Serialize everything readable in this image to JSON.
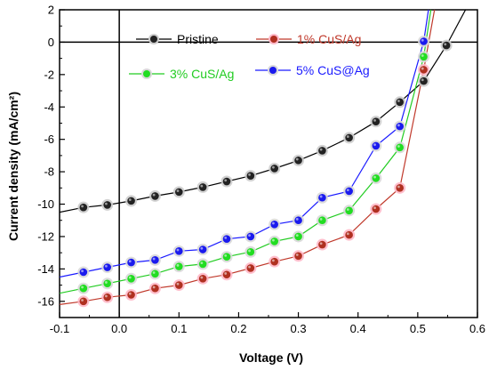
{
  "chart_data": {
    "type": "line",
    "xlabel": "Voltage (V)",
    "ylabel": "Current density (mA/cm²)",
    "xlim": [
      -0.1,
      0.6
    ],
    "ylim": [
      -17,
      2
    ],
    "x_ticks": [
      "-0.1",
      "0.0",
      "0.1",
      "0.2",
      "0.3",
      "0.4",
      "0.5",
      "0.6"
    ],
    "y_ticks": [
      "2",
      "0",
      "-2",
      "-4",
      "-6",
      "-8",
      "-10",
      "-12",
      "-14",
      "-16"
    ],
    "x_tick_values": [
      -0.1,
      0.0,
      0.1,
      0.2,
      0.3,
      0.4,
      0.5,
      0.6
    ],
    "y_tick_values": [
      2,
      0,
      -2,
      -4,
      -6,
      -8,
      -10,
      -12,
      -14,
      -16
    ],
    "zero_lines": true,
    "series": [
      {
        "name": "Pristine",
        "color": "#000000",
        "marker_fill": "#222222",
        "marker_halo": "#cccccc",
        "points": [
          [
            -0.06,
            -10.2
          ],
          [
            -0.02,
            -10.05
          ],
          [
            0.02,
            -9.8
          ],
          [
            0.06,
            -9.5
          ],
          [
            0.1,
            -9.25
          ],
          [
            0.14,
            -8.95
          ],
          [
            0.18,
            -8.6
          ],
          [
            0.22,
            -8.25
          ],
          [
            0.26,
            -7.8
          ],
          [
            0.3,
            -7.3
          ],
          [
            0.34,
            -6.7
          ],
          [
            0.385,
            -5.9
          ],
          [
            0.43,
            -4.9
          ],
          [
            0.47,
            -3.7
          ],
          [
            0.51,
            -2.4
          ],
          [
            0.548,
            -0.2
          ]
        ],
        "line": [
          [
            -0.1,
            -10.5
          ],
          [
            -0.06,
            -10.2
          ],
          [
            -0.02,
            -10.05
          ],
          [
            0.02,
            -9.8
          ],
          [
            0.06,
            -9.5
          ],
          [
            0.1,
            -9.25
          ],
          [
            0.14,
            -8.95
          ],
          [
            0.18,
            -8.6
          ],
          [
            0.22,
            -8.25
          ],
          [
            0.26,
            -7.8
          ],
          [
            0.3,
            -7.3
          ],
          [
            0.34,
            -6.7
          ],
          [
            0.385,
            -5.9
          ],
          [
            0.43,
            -4.9
          ],
          [
            0.47,
            -3.7
          ],
          [
            0.51,
            -2.4
          ],
          [
            0.548,
            -0.2
          ],
          [
            0.58,
            2
          ]
        ]
      },
      {
        "name": "1% CuS/Ag",
        "color": "#c0392b",
        "marker_fill": "#b03020",
        "marker_halo": "#ffb8c8",
        "points": [
          [
            -0.06,
            -16.0
          ],
          [
            -0.02,
            -15.75
          ],
          [
            0.02,
            -15.6
          ],
          [
            0.06,
            -15.2
          ],
          [
            0.1,
            -15.0
          ],
          [
            0.14,
            -14.6
          ],
          [
            0.18,
            -14.35
          ],
          [
            0.22,
            -13.95
          ],
          [
            0.26,
            -13.55
          ],
          [
            0.3,
            -13.2
          ],
          [
            0.34,
            -12.5
          ],
          [
            0.385,
            -11.9
          ],
          [
            0.43,
            -10.3
          ],
          [
            0.47,
            -9.0
          ],
          [
            0.51,
            -1.7
          ]
        ],
        "line": [
          [
            -0.1,
            -16.2
          ],
          [
            -0.06,
            -16.0
          ],
          [
            -0.02,
            -15.75
          ],
          [
            0.02,
            -15.6
          ],
          [
            0.06,
            -15.2
          ],
          [
            0.1,
            -15.0
          ],
          [
            0.14,
            -14.6
          ],
          [
            0.18,
            -14.35
          ],
          [
            0.22,
            -13.95
          ],
          [
            0.26,
            -13.55
          ],
          [
            0.3,
            -13.2
          ],
          [
            0.34,
            -12.5
          ],
          [
            0.385,
            -11.9
          ],
          [
            0.43,
            -10.3
          ],
          [
            0.47,
            -9.0
          ],
          [
            0.51,
            -1.7
          ],
          [
            0.528,
            2
          ]
        ]
      },
      {
        "name": "3% CuS/Ag",
        "color": "#22cc22",
        "marker_fill": "#22dd22",
        "marker_halo": "#d8d8d8",
        "points": [
          [
            -0.06,
            -15.2
          ],
          [
            -0.02,
            -14.9
          ],
          [
            0.02,
            -14.6
          ],
          [
            0.06,
            -14.3
          ],
          [
            0.1,
            -13.85
          ],
          [
            0.14,
            -13.7
          ],
          [
            0.18,
            -13.25
          ],
          [
            0.22,
            -12.95
          ],
          [
            0.26,
            -12.3
          ],
          [
            0.3,
            -12.0
          ],
          [
            0.34,
            -11.0
          ],
          [
            0.385,
            -10.4
          ],
          [
            0.43,
            -8.4
          ],
          [
            0.47,
            -6.5
          ],
          [
            0.51,
            -0.9
          ]
        ],
        "line": [
          [
            -0.1,
            -15.5
          ],
          [
            -0.06,
            -15.2
          ],
          [
            -0.02,
            -14.9
          ],
          [
            0.02,
            -14.6
          ],
          [
            0.06,
            -14.3
          ],
          [
            0.1,
            -13.85
          ],
          [
            0.14,
            -13.7
          ],
          [
            0.18,
            -13.25
          ],
          [
            0.22,
            -12.95
          ],
          [
            0.26,
            -12.3
          ],
          [
            0.3,
            -12.0
          ],
          [
            0.34,
            -11.0
          ],
          [
            0.385,
            -10.4
          ],
          [
            0.43,
            -8.4
          ],
          [
            0.47,
            -6.5
          ],
          [
            0.51,
            -0.9
          ],
          [
            0.522,
            2
          ]
        ]
      },
      {
        "name": "5% CuS@Ag",
        "color": "#1a1aff",
        "marker_fill": "#1a1aee",
        "marker_halo": "#d8d8d8",
        "points": [
          [
            -0.06,
            -14.2
          ],
          [
            -0.02,
            -13.9
          ],
          [
            0.02,
            -13.6
          ],
          [
            0.06,
            -13.45
          ],
          [
            0.1,
            -12.9
          ],
          [
            0.14,
            -12.8
          ],
          [
            0.18,
            -12.15
          ],
          [
            0.22,
            -12.0
          ],
          [
            0.26,
            -11.25
          ],
          [
            0.3,
            -11.0
          ],
          [
            0.34,
            -9.6
          ],
          [
            0.385,
            -9.2
          ],
          [
            0.43,
            -6.4
          ],
          [
            0.47,
            -5.2
          ],
          [
            0.51,
            0.05
          ]
        ],
        "line": [
          [
            -0.1,
            -14.5
          ],
          [
            -0.06,
            -14.2
          ],
          [
            -0.02,
            -13.9
          ],
          [
            0.02,
            -13.6
          ],
          [
            0.06,
            -13.45
          ],
          [
            0.1,
            -12.9
          ],
          [
            0.14,
            -12.8
          ],
          [
            0.18,
            -12.15
          ],
          [
            0.22,
            -12.0
          ],
          [
            0.26,
            -11.25
          ],
          [
            0.3,
            -11.0
          ],
          [
            0.34,
            -9.6
          ],
          [
            0.385,
            -9.2
          ],
          [
            0.43,
            -6.4
          ],
          [
            0.47,
            -5.2
          ],
          [
            0.51,
            0.05
          ],
          [
            0.518,
            2
          ]
        ]
      }
    ],
    "legend": "top-left"
  }
}
